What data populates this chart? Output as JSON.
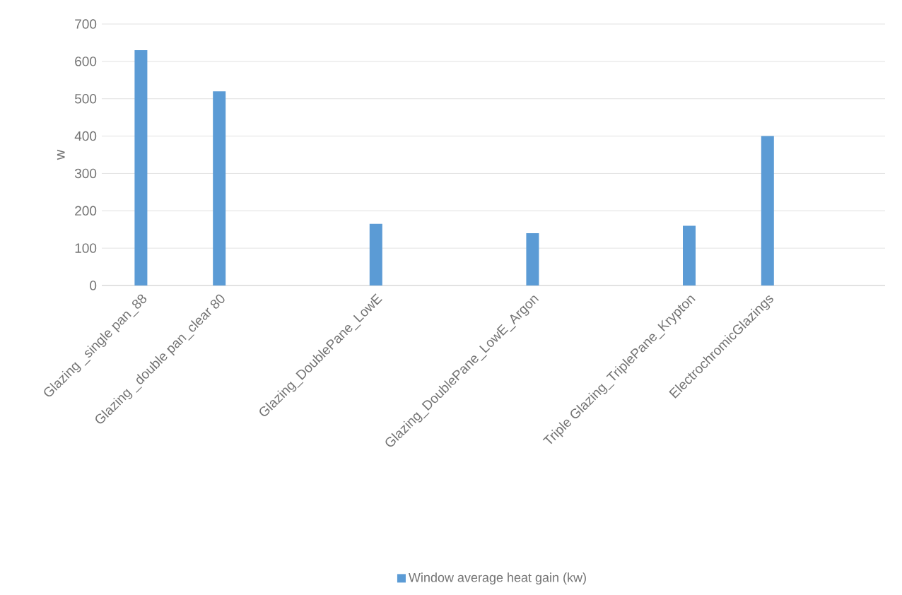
{
  "chart_data": {
    "type": "bar",
    "ylabel": "w",
    "categories": [
      "Glazing _single pan_88",
      "Glazing _double pan_clear 80",
      null,
      "Glazing_DoublePane_LowE",
      null,
      "Glazing_DoublePane_LowE_Argon",
      null,
      "Triple Glazing_TriplePane_Krypton",
      "ElectrochromicGlazings",
      null
    ],
    "series": [
      {
        "name": "Window average heat gain (kw)",
        "color": "#5b9bd5",
        "values": [
          630,
          520,
          null,
          165,
          null,
          140,
          null,
          160,
          400,
          null
        ]
      }
    ],
    "ylim": [
      0,
      700
    ],
    "yticks": [
      0,
      100,
      200,
      300,
      400,
      500,
      600,
      700
    ],
    "grid": "y",
    "legend": "bottom"
  }
}
